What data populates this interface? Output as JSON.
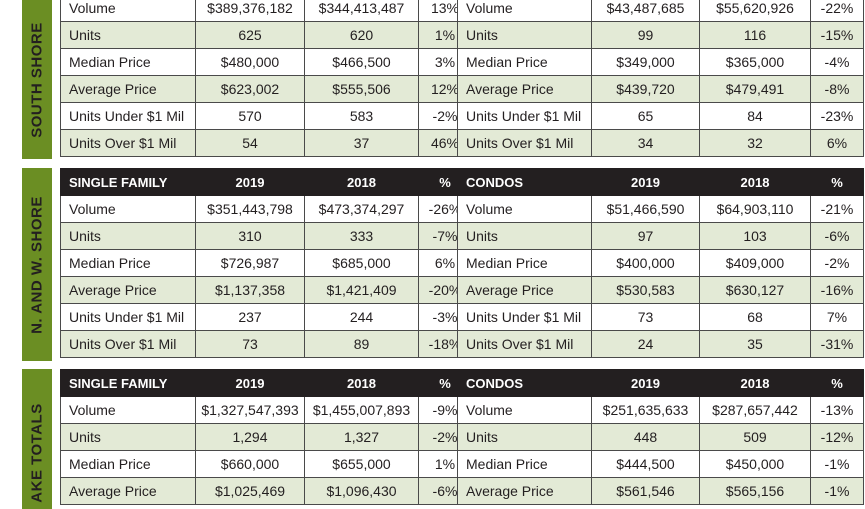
{
  "sections": [
    {
      "region": "SOUTH SHORE",
      "single_family": {
        "header": null,
        "rows": [
          [
            "Volume",
            "$389,376,182",
            "$344,413,487",
            "13%"
          ],
          [
            "Units",
            "625",
            "620",
            "1%"
          ],
          [
            "Median Price",
            "$480,000",
            "$466,500",
            "3%"
          ],
          [
            "Average Price",
            "$623,002",
            "$555,506",
            "12%"
          ],
          [
            "Units Under $1 Mil",
            "570",
            "583",
            "-2%"
          ],
          [
            "Units Over $1 Mil",
            "54",
            "37",
            "46%"
          ]
        ]
      },
      "condos": {
        "header": null,
        "rows": [
          [
            "Volume",
            "$43,487,685",
            "$55,620,926",
            "-22%"
          ],
          [
            "Units",
            "99",
            "116",
            "-15%"
          ],
          [
            "Median Price",
            "$349,000",
            "$365,000",
            "-4%"
          ],
          [
            "Average Price",
            "$439,720",
            "$479,491",
            "-8%"
          ],
          [
            "Units Under $1 Mil",
            "65",
            "84",
            "-23%"
          ],
          [
            "Units Over $1 Mil",
            "34",
            "32",
            "6%"
          ]
        ]
      }
    },
    {
      "region": "N. AND W. SHORE",
      "single_family": {
        "header": [
          "SINGLE FAMILY",
          "2019",
          "2018",
          "%"
        ],
        "rows": [
          [
            "Volume",
            "$351,443,798",
            "$473,374,297",
            "-26%"
          ],
          [
            "Units",
            "310",
            "333",
            "-7%"
          ],
          [
            "Median Price",
            "$726,987",
            "$685,000",
            "6%"
          ],
          [
            "Average Price",
            "$1,137,358",
            "$1,421,409",
            "-20%"
          ],
          [
            "Units Under $1 Mil",
            "237",
            "244",
            "-3%"
          ],
          [
            "Units Over $1 Mil",
            "73",
            "89",
            "-18%"
          ]
        ]
      },
      "condos": {
        "header": [
          "CONDOS",
          "2019",
          "2018",
          "%"
        ],
        "rows": [
          [
            "Volume",
            "$51,466,590",
            "$64,903,110",
            "-21%"
          ],
          [
            "Units",
            "97",
            "103",
            "-6%"
          ],
          [
            "Median Price",
            "$400,000",
            "$409,000",
            "-2%"
          ],
          [
            "Average Price",
            "$530,583",
            "$630,127",
            "-16%"
          ],
          [
            "Units Under $1 Mil",
            "73",
            "68",
            "7%"
          ],
          [
            "Units Over $1 Mil",
            "24",
            "35",
            "-31%"
          ]
        ]
      }
    },
    {
      "region": "AKE TOTALS",
      "single_family": {
        "header": [
          "SINGLE FAMILY",
          "2019",
          "2018",
          "%"
        ],
        "rows": [
          [
            "Volume",
            "$1,327,547,393",
            "$1,455,007,893",
            "-9%"
          ],
          [
            "Units",
            "1,294",
            "1,327",
            "-2%"
          ],
          [
            "Median Price",
            "$660,000",
            "$655,000",
            "1%"
          ],
          [
            "Average Price",
            "$1,025,469",
            "$1,096,430",
            "-6%"
          ]
        ]
      },
      "condos": {
        "header": [
          "CONDOS",
          "2019",
          "2018",
          "%"
        ],
        "rows": [
          [
            "Volume",
            "$251,635,633",
            "$287,657,442",
            "-13%"
          ],
          [
            "Units",
            "448",
            "509",
            "-12%"
          ],
          [
            "Median Price",
            "$444,500",
            "$450,000",
            "-1%"
          ],
          [
            "Average Price",
            "$561,546",
            "$565,156",
            "-1%"
          ]
        ]
      }
    }
  ],
  "colors": {
    "side_bar": "#6b8e23",
    "header_bg": "#231f20",
    "alt_row": "#e3ead6"
  }
}
